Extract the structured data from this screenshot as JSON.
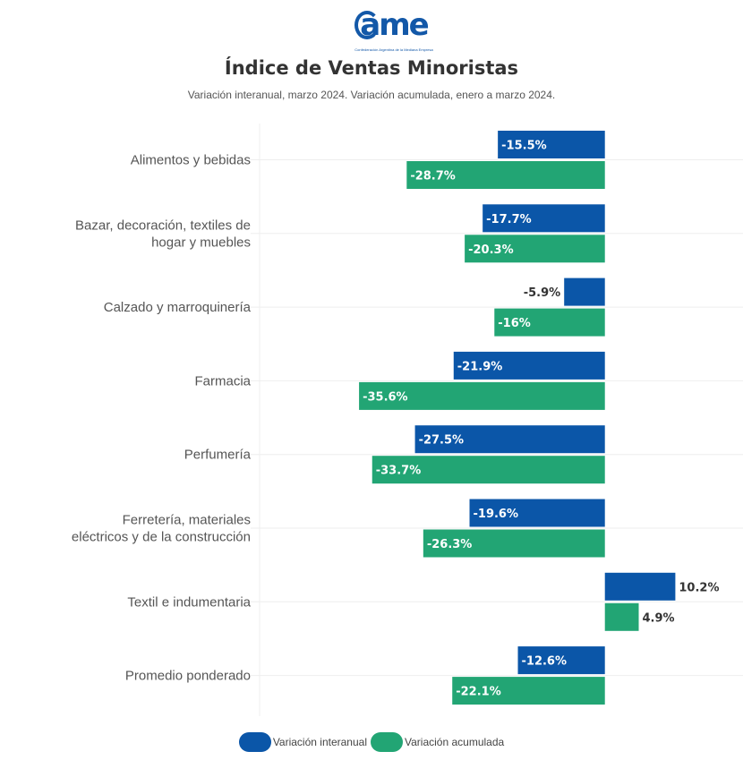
{
  "header": {
    "logo_text": "ame",
    "logo_subtitle": "Confederación Argentina de la Mediana Empresa",
    "brand_color": "#1358a8"
  },
  "chart_data": {
    "type": "bar",
    "orientation": "horizontal",
    "title": "Índice de Ventas Minoristas",
    "subtitle": "Variación interanual, marzo 2024. Variación acumulada, enero a marzo 2024.",
    "xlabel": "",
    "ylabel": "",
    "xlim": [
      -50,
      20
    ],
    "grid": true,
    "legend_position": "bottom",
    "categories": [
      [
        "Alimentos y bebidas"
      ],
      [
        "Bazar, decoración, textiles de",
        "hogar y muebles"
      ],
      [
        "Calzado y marroquinería"
      ],
      [
        "Farmacia"
      ],
      [
        "Perfumería"
      ],
      [
        "Ferretería, materiales",
        "eléctricos y de la construcción"
      ],
      [
        "Textil e indumentaria"
      ],
      [
        "Promedio ponderado"
      ]
    ],
    "series": [
      {
        "name": "Variación interanual",
        "color": "#0b56a8",
        "values": [
          -15.5,
          -17.7,
          -5.9,
          -21.9,
          -27.5,
          -19.6,
          10.2,
          -12.6
        ],
        "labels": [
          "-15.5%",
          "-17.7%",
          "-5.9%",
          "-21.9%",
          "-27.5%",
          "-19.6%",
          "10.2%",
          "-12.6%"
        ]
      },
      {
        "name": "Variación acumulada",
        "color": "#22a574",
        "values": [
          -28.7,
          -20.3,
          -16,
          -35.6,
          -33.7,
          -26.3,
          4.9,
          -22.1
        ],
        "labels": [
          "-28.7%",
          "-20.3%",
          "-16%",
          "-35.6%",
          "-33.7%",
          "-26.3%",
          "4.9%",
          "-22.1%"
        ]
      }
    ]
  }
}
